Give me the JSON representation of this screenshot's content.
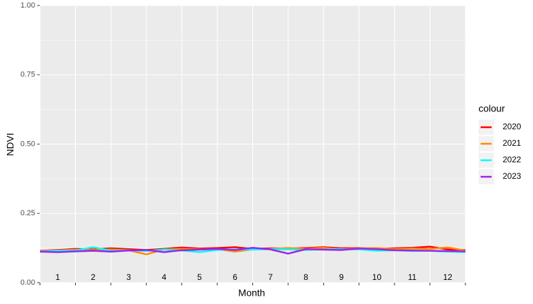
{
  "chart_data": {
    "type": "line",
    "x_label": "Month",
    "y_label": "NDVI",
    "legend_title": "colour",
    "x": [
      0,
      0.5,
      1,
      1.5,
      2,
      2.5,
      3,
      3.5,
      4,
      4.5,
      5,
      5.5,
      6,
      6.5,
      7,
      7.5,
      8,
      8.5,
      9,
      9.5,
      10,
      10.5,
      11,
      11.5,
      12
    ],
    "xlim": [
      0,
      12
    ],
    "xticks": [
      {
        "value": 0.5,
        "label": "1"
      },
      {
        "value": 1.5,
        "label": "2"
      },
      {
        "value": 2.5,
        "label": "3"
      },
      {
        "value": 3.5,
        "label": "4"
      },
      {
        "value": 4.5,
        "label": "5"
      },
      {
        "value": 5.5,
        "label": "6"
      },
      {
        "value": 6.5,
        "label": "7"
      },
      {
        "value": 7.5,
        "label": "8"
      },
      {
        "value": 8.5,
        "label": "9"
      },
      {
        "value": 9.5,
        "label": "10"
      },
      {
        "value": 10.5,
        "label": "11"
      },
      {
        "value": 11.5,
        "label": "12"
      }
    ],
    "ylim": [
      0,
      1
    ],
    "yticks": [
      {
        "value": 0,
        "label": "0.00"
      },
      {
        "value": 0.25,
        "label": "0.25"
      },
      {
        "value": 0.5,
        "label": "0.50"
      },
      {
        "value": 0.75,
        "label": "0.75"
      },
      {
        "value": 1,
        "label": "1.00"
      }
    ],
    "grid": true,
    "series": [
      {
        "name": "2020",
        "color": "#ff0000",
        "values": [
          0.115,
          0.118,
          0.122,
          0.12,
          0.124,
          0.121,
          0.118,
          0.122,
          0.127,
          0.123,
          0.125,
          0.128,
          0.122,
          0.124,
          0.123,
          0.125,
          0.128,
          0.124,
          0.125,
          0.122,
          0.124,
          0.126,
          0.13,
          0.12,
          0.118
        ]
      },
      {
        "name": "2021",
        "color": "#ff8c00",
        "values": [
          0.114,
          0.116,
          0.119,
          0.118,
          0.12,
          0.117,
          0.102,
          0.12,
          0.122,
          0.12,
          0.121,
          0.112,
          0.12,
          0.122,
          0.125,
          0.122,
          0.126,
          0.12,
          0.124,
          0.125,
          0.121,
          0.123,
          0.122,
          0.127,
          0.116
        ]
      },
      {
        "name": "2022",
        "color": "#00ffff",
        "values": [
          0.113,
          0.115,
          0.116,
          0.128,
          0.115,
          0.117,
          0.114,
          0.119,
          0.116,
          0.11,
          0.118,
          0.12,
          0.119,
          0.121,
          0.12,
          0.118,
          0.12,
          0.121,
          0.12,
          0.115,
          0.117,
          0.114,
          0.115,
          0.112,
          0.11
        ]
      },
      {
        "name": "2023",
        "color": "#a020f0",
        "values": [
          0.112,
          0.11,
          0.113,
          0.115,
          0.112,
          0.116,
          0.118,
          0.11,
          0.117,
          0.119,
          0.122,
          0.118,
          0.126,
          0.12,
          0.105,
          0.121,
          0.119,
          0.118,
          0.123,
          0.121,
          0.117,
          0.116,
          0.115,
          0.114,
          0.113
        ]
      }
    ]
  }
}
